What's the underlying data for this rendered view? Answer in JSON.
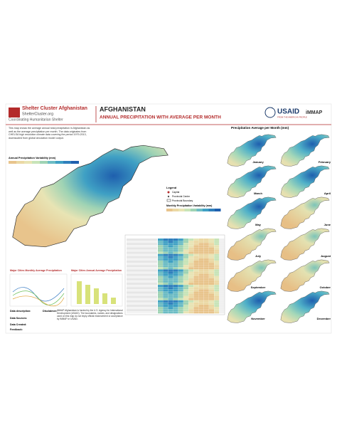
{
  "header": {
    "org": "Shelter Cluster Afghanistan",
    "site": "ShelterCluster.org",
    "tagline": "Coordinating Humanitarian Shelter",
    "country": "AFGHANISTAN",
    "title": "ANNUAL PRECIPITATION WITH AVERAGE PER MONTH",
    "partner_1": "USAID",
    "partner_1_sub": "FROM THE AMERICAN PEOPLE",
    "partner_2": "iMMAP"
  },
  "intro": "This map shows the average annual total precipitation in Afghanistan as well as the average precipitation per month. The data originates from CHELSA high resolution climate data covering the period 1979-2013, downscaled from global circulation model output.",
  "main_map": {
    "legend_title": "Annual Precipitation Variability (mm)"
  },
  "legend": {
    "title": "Legend",
    "capital": "Capital",
    "provincial_center": "Provincial Center",
    "boundary": "Provincial Boundary",
    "monthly_title": "Monthly Precipitation Variability (mm)"
  },
  "monthly": {
    "title": "Precipitation Average per Month (mm)",
    "months": [
      "January",
      "February",
      "March",
      "April",
      "May",
      "June",
      "July",
      "August",
      "September",
      "October",
      "November",
      "December"
    ]
  },
  "charts": {
    "monthly_title": "Major Cities Monthly Average Precipitation",
    "annual_title": "Major Cities Annual Average Precipitation"
  },
  "footer": {
    "data_description": "Data description:",
    "data_sources": "Data Sources:",
    "data_created": "Data Created:",
    "feedback": "Feedback:",
    "disclaimer_label": "Disclaimer:",
    "disclaimer": "iMMAP Afghanistan is funded by the U.S. Agency for International Development (USAID). The boundaries, names, and designations used on this map do not imply official endorsement or acceptance by iMMAP or USAID."
  }
}
